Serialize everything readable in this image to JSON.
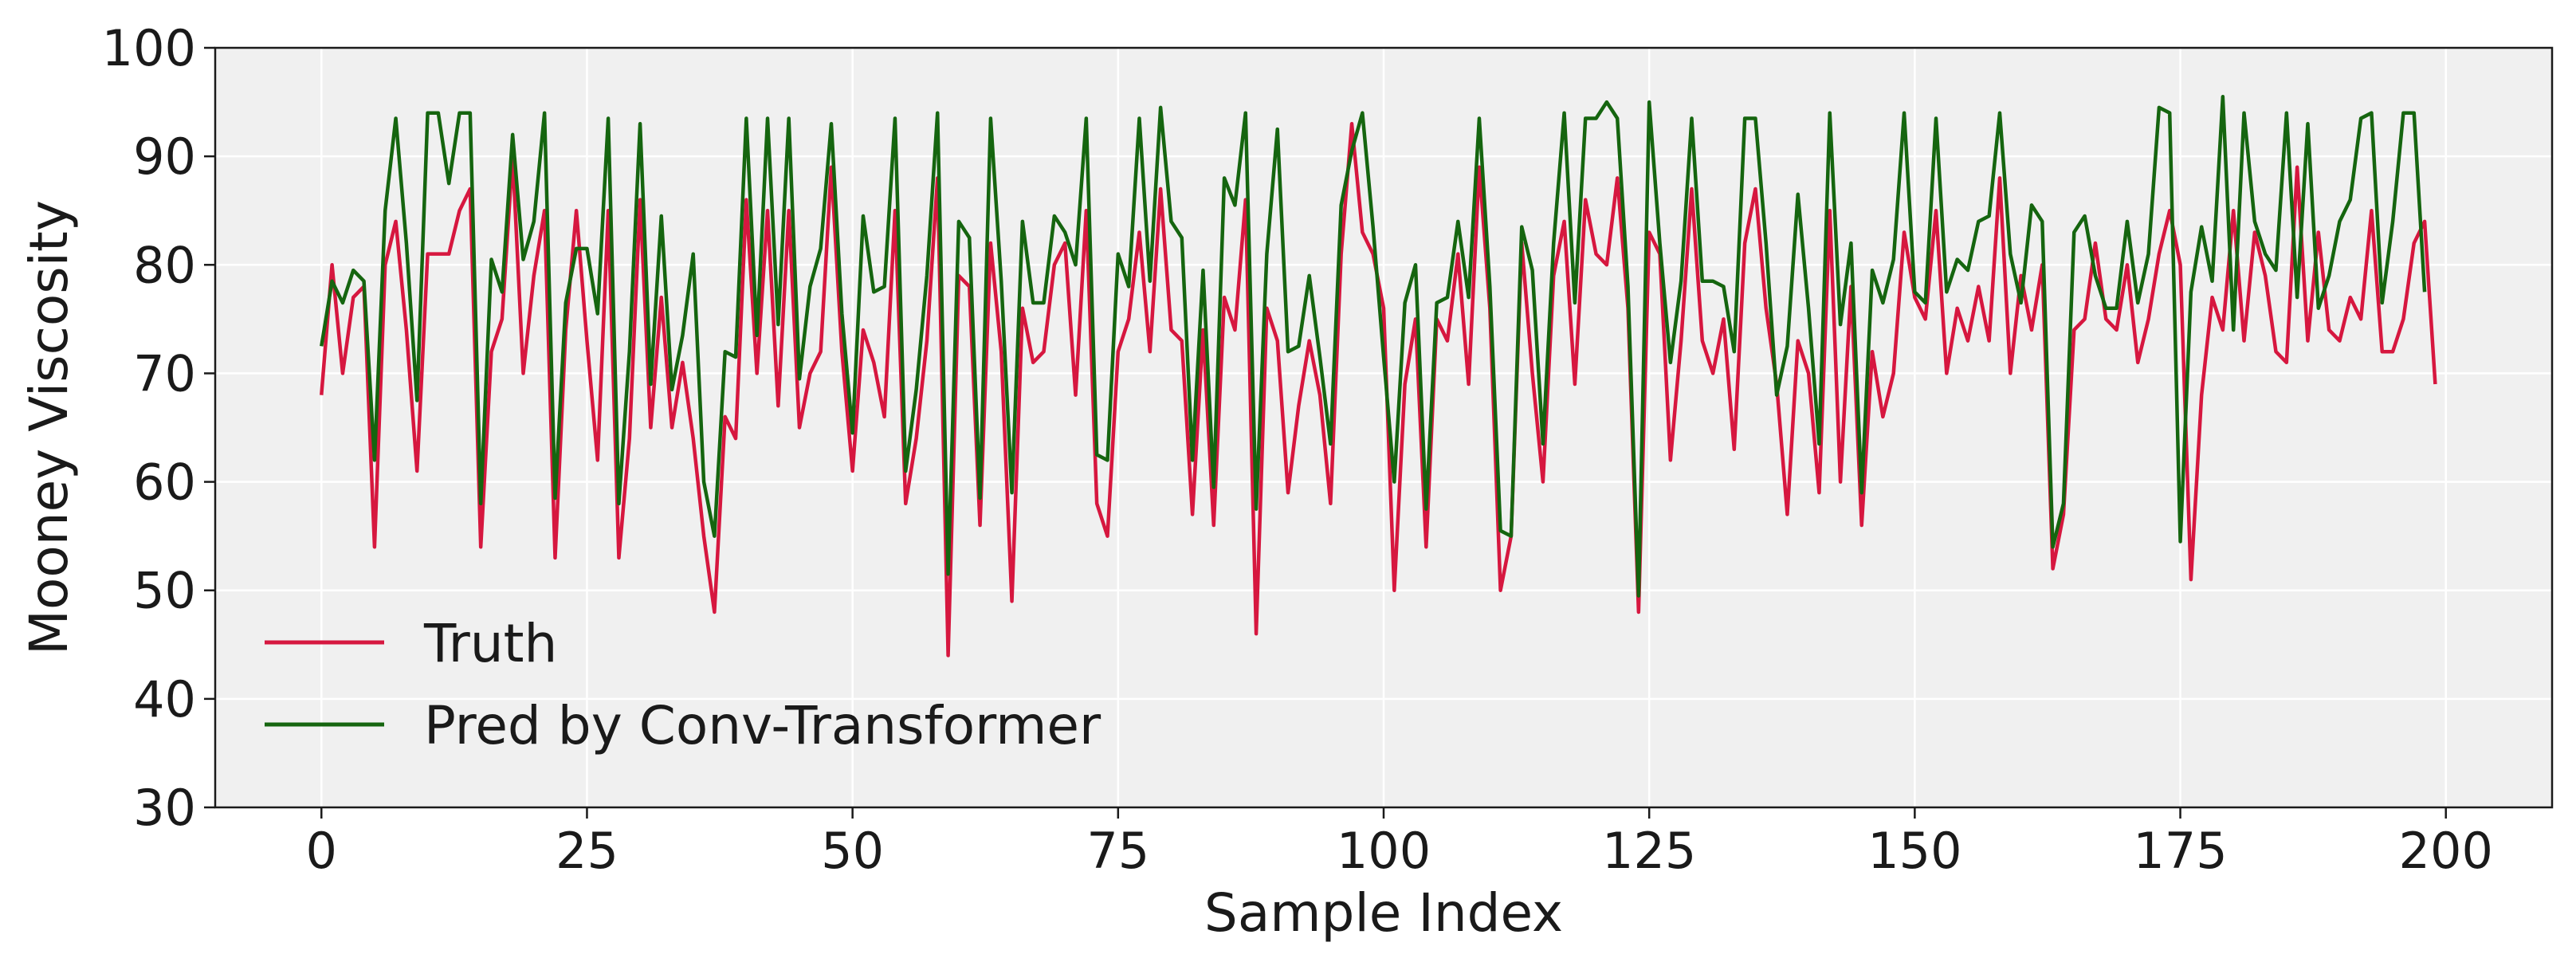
{
  "chart_data": {
    "type": "line",
    "xlabel": "Sample Index",
    "ylabel": "Mooney Viscosity",
    "xlim": [
      -10,
      210
    ],
    "ylim": [
      30,
      100
    ],
    "xticks": [
      0,
      25,
      50,
      75,
      100,
      125,
      150,
      175,
      200
    ],
    "yticks": [
      30,
      40,
      50,
      60,
      70,
      80,
      90,
      100
    ],
    "grid": true,
    "background_color": "#f0f0f0",
    "legend_position": "lower-left",
    "series": [
      {
        "name": "Truth",
        "color": "#d6173f",
        "values": [
          68,
          80,
          70,
          77,
          78,
          54,
          80,
          84,
          74,
          61,
          81,
          81,
          81,
          85,
          87,
          54,
          72,
          75,
          90,
          70,
          79,
          85,
          53,
          74,
          85,
          73,
          62,
          85,
          53,
          64,
          86,
          65,
          77,
          65,
          71,
          64,
          55,
          48,
          66,
          64,
          86,
          70,
          85,
          67,
          85,
          65,
          70,
          72,
          89,
          72,
          61,
          74,
          71,
          66,
          85,
          58,
          64,
          73,
          88,
          44,
          79,
          78,
          56,
          82,
          72,
          49,
          76,
          71,
          72,
          80,
          82,
          68,
          85,
          58,
          55,
          72,
          75,
          83,
          72,
          87,
          74,
          73,
          57,
          74,
          56,
          77,
          74,
          86,
          46,
          76,
          73,
          59,
          67,
          73,
          68,
          58,
          81,
          93,
          83,
          81,
          76,
          50,
          69,
          75,
          54,
          75,
          73,
          81,
          69,
          89,
          76,
          50,
          55,
          82,
          70,
          60,
          79,
          84,
          69,
          86,
          81,
          80,
          88,
          76,
          48,
          83,
          81,
          62,
          73,
          87,
          73,
          70,
          75,
          63,
          82,
          87,
          76,
          69,
          57,
          73,
          70,
          59,
          85,
          60,
          78,
          56,
          72,
          66,
          70,
          83,
          77,
          75,
          85,
          70,
          76,
          73,
          78,
          73,
          88,
          70,
          79,
          74,
          80,
          52,
          57,
          74,
          75,
          82,
          75,
          74,
          80,
          71,
          75,
          81,
          85,
          80,
          51,
          68,
          77,
          74,
          85,
          73,
          83,
          79,
          72,
          71,
          89,
          73,
          83,
          74,
          73,
          77,
          75,
          85,
          72,
          72,
          75,
          82,
          84,
          69
        ]
      },
      {
        "name": "Pred by Conv-Transformer",
        "color": "#15650f",
        "values": [
          72.5,
          78.5,
          76.5,
          79.5,
          78.5,
          62,
          85,
          93.5,
          82,
          67.5,
          94,
          94,
          87.5,
          94,
          94,
          58,
          80.5,
          77.5,
          92,
          80.5,
          84,
          94,
          58.5,
          76.5,
          81.5,
          81.5,
          75.5,
          93.5,
          58,
          72,
          93,
          69,
          84.5,
          68.5,
          73.5,
          81,
          60,
          55,
          72,
          71.5,
          93.5,
          73.5,
          93.5,
          74.5,
          93.5,
          69.5,
          78,
          81.5,
          93,
          75.5,
          64.5,
          84.5,
          77.5,
          78,
          93.5,
          61,
          68.5,
          79,
          94,
          51.5,
          84,
          82.5,
          58.5,
          93.5,
          78.5,
          59,
          84,
          76.5,
          76.5,
          84.5,
          83,
          80,
          93.5,
          62.5,
          62,
          81,
          78,
          93.5,
          78.5,
          94.5,
          84,
          82.5,
          62,
          79.5,
          59.5,
          88,
          85.5,
          94,
          57.5,
          81,
          92.5,
          72,
          72.5,
          79,
          71.5,
          63.5,
          85.5,
          90.5,
          94,
          83.5,
          71.5,
          60,
          76.5,
          80,
          57.5,
          76.5,
          77,
          84,
          77,
          93.5,
          78,
          55.5,
          55,
          83.5,
          79.5,
          63.5,
          82,
          94,
          76.5,
          93.5,
          93.5,
          95,
          93.5,
          78,
          49.5,
          95,
          82,
          71,
          78.5,
          93.5,
          78.5,
          78.5,
          78,
          72,
          93.5,
          93.5,
          82,
          68,
          72.5,
          86.5,
          76,
          63.5,
          94,
          74.5,
          82,
          59,
          79.5,
          76.5,
          80.5,
          94,
          77.5,
          76.5,
          93.5,
          77.5,
          80.5,
          79.5,
          84,
          84.5,
          94,
          81,
          76.5,
          85.5,
          84,
          54,
          58,
          83,
          84.5,
          79,
          76,
          76,
          84,
          76.5,
          81,
          94.5,
          94,
          54.5,
          77.5,
          83.5,
          78.5,
          95.5,
          74,
          94,
          84,
          81,
          79.5,
          94,
          77,
          93,
          76,
          79,
          84,
          86,
          93.5,
          94,
          76.5,
          84,
          94,
          94,
          77.5
        ]
      }
    ]
  }
}
